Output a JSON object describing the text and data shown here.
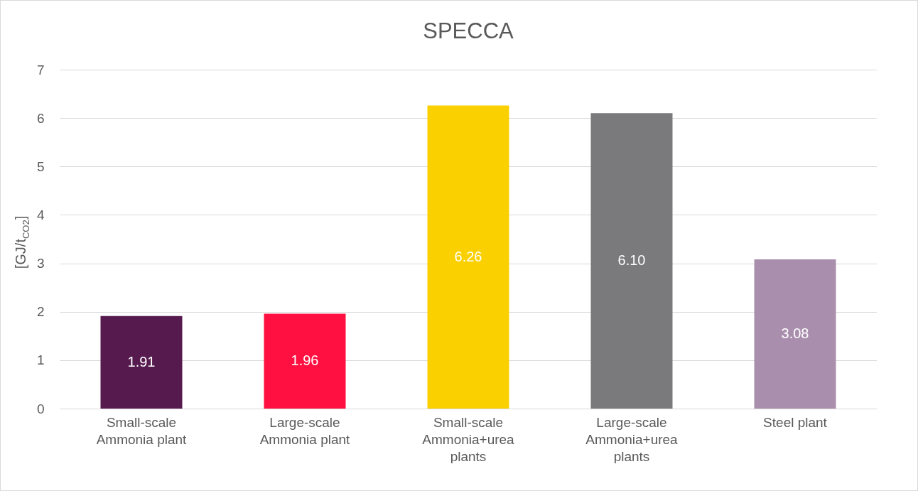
{
  "chart_data": {
    "type": "bar",
    "title": "SPECCA",
    "ylabel": "[GJ/t$_{CO2}$]",
    "categories": [
      "Small-scale Ammonia plant",
      "Large-scale Ammonia plant",
      "Small-scale Ammonia+urea plants",
      "Large-scale Ammonia+urea plants",
      "Steel plant"
    ],
    "values": [
      1.91,
      1.96,
      6.26,
      6.1,
      3.08
    ],
    "value_labels": [
      "1.91",
      "1.96",
      "6.26",
      "6.10",
      "3.08"
    ],
    "colors": [
      "#561a4f",
      "#ff1040",
      "#fad000",
      "#7a7a7c",
      "#a98fad"
    ],
    "ylim": [
      0,
      7
    ],
    "yticks": [
      0,
      1,
      2,
      3,
      4,
      5,
      6,
      7
    ],
    "grid": "y",
    "legend": false
  }
}
